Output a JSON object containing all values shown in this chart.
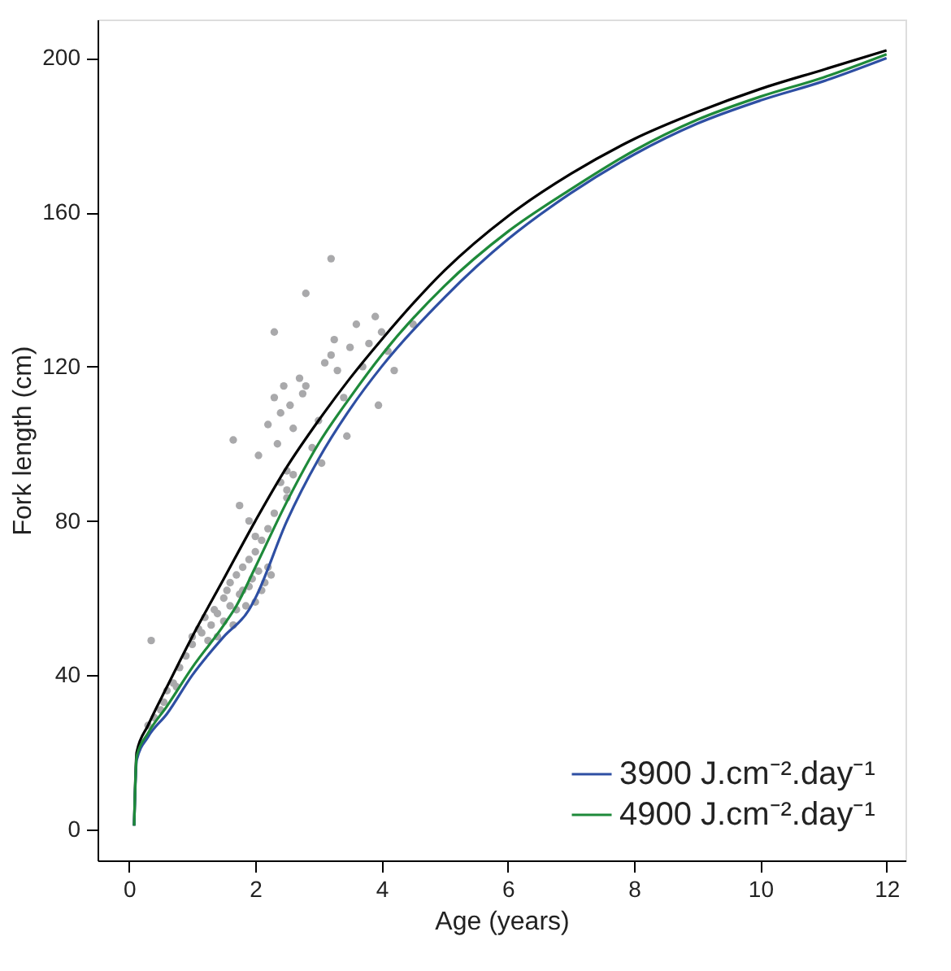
{
  "chart_data": {
    "type": "line",
    "xlabel": "Age (years)",
    "ylabel": "Fork length (cm)",
    "xlim": [
      -0.5,
      12.3
    ],
    "ylim": [
      -8,
      210
    ],
    "xticks": [
      0,
      2,
      4,
      6,
      8,
      10,
      12
    ],
    "yticks": [
      0,
      40,
      80,
      120,
      160,
      200
    ],
    "grid": false,
    "legend": "bottom right",
    "marker": "none",
    "line_style": "solid",
    "series": [
      {
        "type": "scatter",
        "color": "#a9a9ab",
        "marker": "circle",
        "x": [
          0.35,
          0.3,
          0.4,
          0.5,
          0.55,
          0.6,
          0.7,
          0.75,
          0.8,
          0.9,
          1.0,
          1.0,
          1.1,
          1.15,
          1.2,
          1.25,
          1.3,
          1.35,
          1.4,
          1.4,
          1.5,
          1.5,
          1.55,
          1.6,
          1.6,
          1.65,
          1.7,
          1.7,
          1.75,
          1.8,
          1.8,
          1.85,
          1.9,
          1.9,
          1.95,
          2.0,
          2.0,
          2.05,
          2.1,
          2.1,
          2.15,
          2.2,
          2.25,
          2.3,
          1.75,
          1.9,
          2.2,
          2.4,
          2.5,
          2.05,
          2.2,
          2.3,
          2.35,
          2.4,
          2.45,
          2.5,
          2.55,
          2.6,
          2.7,
          2.75,
          2.8,
          2.5,
          2.6,
          2.9,
          3.0,
          3.1,
          3.2,
          3.25,
          3.3,
          3.4,
          3.5,
          3.6,
          3.7,
          3.8,
          3.9,
          4.0,
          4.1,
          4.2,
          4.5,
          3.2,
          2.8,
          2.3,
          1.65,
          2.0,
          3.05,
          3.45,
          3.95
        ],
        "values": [
          49,
          27,
          29,
          31,
          33,
          36,
          38,
          37,
          42,
          45,
          48,
          50,
          52,
          51,
          55,
          49,
          53,
          57,
          56,
          50,
          54,
          60,
          62,
          58,
          64,
          53,
          57,
          66,
          61,
          62,
          68,
          58,
          63,
          70,
          65,
          59,
          72,
          67,
          62,
          75,
          64,
          78,
          66,
          82,
          84,
          80,
          68,
          90,
          86,
          97,
          105,
          112,
          100,
          108,
          115,
          93,
          110,
          104,
          117,
          113,
          115,
          88,
          92,
          99,
          106,
          121,
          123,
          127,
          119,
          112,
          125,
          131,
          120,
          126,
          133,
          129,
          124,
          119,
          131,
          148,
          139,
          129,
          101,
          76,
          95,
          102,
          110
        ]
      },
      {
        "color": "#000000",
        "x": [
          0.08,
          0.12,
          0.3,
          0.6,
          1,
          1.5,
          2,
          2.5,
          3,
          3.5,
          4,
          5,
          6,
          7,
          8,
          9,
          10,
          11,
          12
        ],
        "values": [
          1,
          20,
          27,
          37,
          50,
          65,
          80,
          94,
          106,
          117,
          127,
          145,
          159,
          170,
          179,
          186,
          192,
          197,
          202
        ]
      },
      {
        "name": "3900 J.cm⁻².day⁻¹",
        "color": "#2e4fa3",
        "x": [
          0.08,
          0.12,
          0.3,
          0.6,
          1,
          1.5,
          1.9,
          2,
          2.5,
          3,
          3.5,
          4,
          5,
          6,
          7,
          8,
          9,
          10,
          11,
          12
        ],
        "values": [
          1,
          18,
          24,
          30,
          40,
          50,
          57,
          60,
          80,
          96,
          109,
          120,
          138,
          153,
          165,
          175,
          183,
          189,
          194,
          200
        ]
      },
      {
        "name": "4900 J.cm⁻².day⁻¹",
        "color": "#1e8a3a",
        "x": [
          0.08,
          0.12,
          0.3,
          0.6,
          1,
          1.5,
          1.7,
          2,
          2.5,
          3,
          3.5,
          4,
          5,
          6,
          7,
          8,
          9,
          10,
          11,
          12
        ],
        "values": [
          1,
          19,
          25,
          32,
          42,
          53,
          58,
          68,
          85,
          100,
          112,
          123,
          141,
          155,
          166,
          176,
          184,
          190,
          195,
          201
        ]
      }
    ]
  }
}
